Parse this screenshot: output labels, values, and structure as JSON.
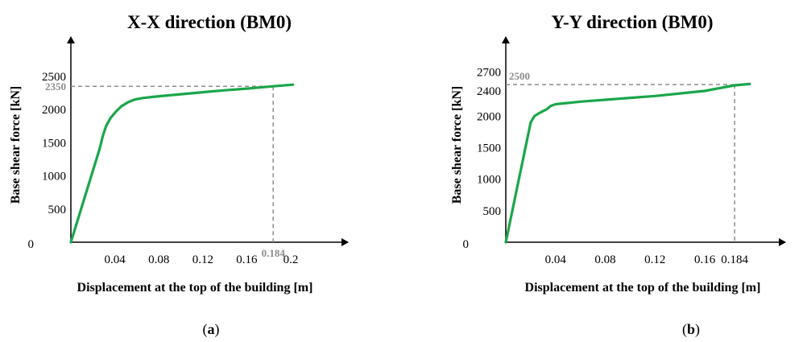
{
  "figure": {
    "panel_labels": [
      {
        "open": "(",
        "letter": "a",
        "close": ")"
      },
      {
        "open": "(",
        "letter": "b",
        "close": ")"
      }
    ]
  },
  "chart_data": [
    {
      "type": "line",
      "title": "X-X direction (BM0)",
      "xlabel": "Displacement at the top of the building [m]",
      "ylabel": "Base shear force [kN]",
      "xlim": [
        0,
        0.23
      ],
      "ylim": [
        0,
        2850
      ],
      "x_ticks": [
        0.04,
        0.08,
        0.12,
        0.16,
        0.2
      ],
      "x_tick_labels": [
        "0.04",
        "0.08",
        "0.12",
        "0.16",
        "0.2"
      ],
      "y_ticks": [
        0,
        500,
        1000,
        1500,
        2000,
        2500
      ],
      "y_tick_labels": [
        "0",
        "500",
        "1000",
        "1500",
        "2000",
        "2500"
      ],
      "series": [
        {
          "color": "#1aa64a",
          "x": [
            0,
            0.026,
            0.029,
            0.032,
            0.036,
            0.041,
            0.046,
            0.052,
            0.058,
            0.066,
            0.08,
            0.1,
            0.12,
            0.14,
            0.16,
            0.184,
            0.202
          ],
          "y": [
            0,
            1400,
            1600,
            1750,
            1870,
            1970,
            2050,
            2110,
            2150,
            2175,
            2200,
            2230,
            2260,
            2290,
            2315,
            2350,
            2375
          ]
        }
      ],
      "reference": {
        "x": 0.184,
        "y": 2350,
        "x_label": "0.184",
        "y_label": "2350",
        "color": "#8c8c8c"
      }
    },
    {
      "type": "line",
      "title": "Y-Y direction (BM0)",
      "xlabel": "Displacement at the top of the building [m]",
      "ylabel": "Base shear force [kN]",
      "xlim": [
        0,
        0.215
      ],
      "ylim": [
        0,
        3000
      ],
      "x_ticks": [
        0.04,
        0.08,
        0.12,
        0.16,
        0.184
      ],
      "x_tick_labels": [
        "0.04",
        "0.08",
        "0.12",
        "0.16",
        "0.184"
      ],
      "y_ticks": [
        0,
        500,
        1000,
        1500,
        2000,
        2400,
        2700
      ],
      "y_tick_labels": [
        "0",
        "500",
        "1000",
        "1500",
        "2000",
        "2400",
        "2700"
      ],
      "series": [
        {
          "color": "#1aa64a",
          "x": [
            0,
            0.02,
            0.023,
            0.027,
            0.03,
            0.033,
            0.036,
            0.04,
            0.06,
            0.08,
            0.1,
            0.12,
            0.14,
            0.16,
            0.184,
            0.196
          ],
          "y": [
            0,
            1900,
            2000,
            2050,
            2080,
            2110,
            2160,
            2190,
            2230,
            2260,
            2290,
            2320,
            2360,
            2400,
            2490,
            2510
          ]
        }
      ],
      "reference": {
        "x": 0.184,
        "y": 2500,
        "x_label": "",
        "y_label": "2500",
        "color": "#8c8c8c"
      }
    }
  ]
}
